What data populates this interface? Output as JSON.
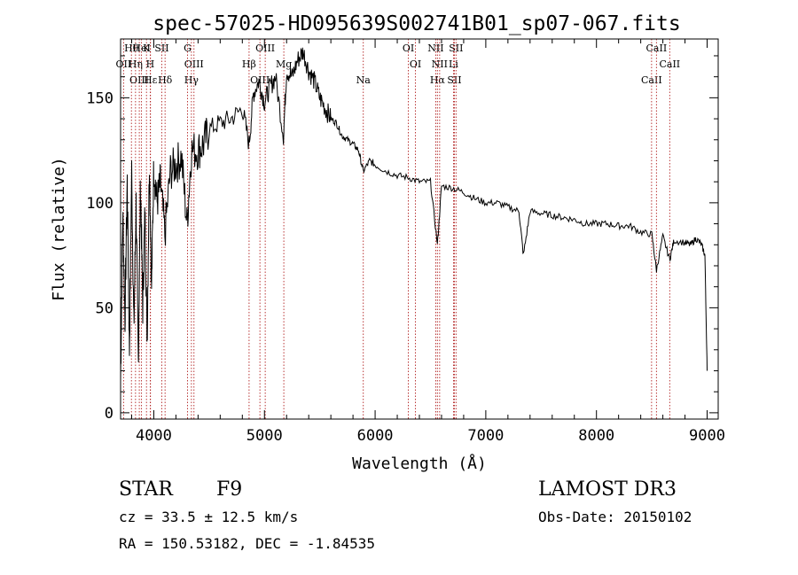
{
  "chart_data": {
    "type": "line",
    "title": "spec-57025-HD095639S002741B01_sp07-067.fits",
    "xlabel": "Wavelength (Å)",
    "ylabel": "Flux (relative)",
    "xlim": [
      3700,
      9100
    ],
    "ylim": [
      -3,
      178
    ],
    "xticks": [
      4000,
      5000,
      6000,
      7000,
      8000,
      9000
    ],
    "yticks": [
      0,
      50,
      100,
      150
    ],
    "series": [
      {
        "name": "flux",
        "x": [
          3700,
          3720,
          3740,
          3760,
          3780,
          3800,
          3820,
          3840,
          3860,
          3880,
          3900,
          3920,
          3940,
          3960,
          3980,
          4000,
          4030,
          4060,
          4100,
          4150,
          4200,
          4250,
          4300,
          4340,
          4400,
          4450,
          4500,
          4600,
          4700,
          4800,
          4861,
          4900,
          4950,
          5000,
          5050,
          5100,
          5172,
          5200,
          5250,
          5300,
          5350,
          5400,
          5450,
          5500,
          5550,
          5600,
          5650,
          5700,
          5750,
          5800,
          5850,
          5893,
          5950,
          6000,
          6100,
          6200,
          6300,
          6400,
          6500,
          6563,
          6600,
          6700,
          6800,
          6900,
          7000,
          7100,
          7200,
          7300,
          7340,
          7400,
          7500,
          7600,
          7700,
          7800,
          7900,
          8000,
          8100,
          8200,
          8300,
          8400,
          8500,
          8542,
          8600,
          8662,
          8700,
          8800,
          8850,
          8900,
          8950,
          8980,
          9000
        ],
        "y": [
          15,
          95,
          45,
          110,
          30,
          115,
          40,
          100,
          25,
          110,
          50,
          95,
          35,
          120,
          60,
          118,
          100,
          110,
          85,
          115,
          118,
          122,
          90,
          125,
          125,
          128,
          135,
          138,
          140,
          145,
          128,
          152,
          158,
          148,
          155,
          160,
          132,
          163,
          160,
          168,
          172,
          163,
          158,
          150,
          145,
          140,
          138,
          132,
          130,
          128,
          125,
          115,
          120,
          118,
          115,
          113,
          112,
          110,
          110,
          80,
          108,
          107,
          105,
          102,
          100,
          100,
          98,
          96,
          75,
          96,
          95,
          94,
          93,
          92,
          90,
          90,
          90,
          89,
          89,
          86,
          85,
          68,
          84,
          73,
          82,
          81,
          80,
          83,
          80,
          75,
          20
        ]
      }
    ],
    "lines": [
      {
        "name": "Hθ",
        "wavelength": 3798
      },
      {
        "name": "OII",
        "wavelength": 3727
      },
      {
        "name": "OIII",
        "wavelength": 3869
      },
      {
        "name": "K",
        "wavelength": 3934
      },
      {
        "name": "H",
        "wavelength": 3968
      },
      {
        "name": "Hε",
        "wavelength": 3970
      },
      {
        "name": "HeI",
        "wavelength": 3889
      },
      {
        "name": "Hη",
        "wavelength": 3835
      },
      {
        "name": "Hδ",
        "wavelength": 4102
      },
      {
        "name": "SII",
        "wavelength": 4072
      },
      {
        "name": "OIII",
        "wavelength": 4363
      },
      {
        "name": "Hγ",
        "wavelength": 4340
      },
      {
        "name": "G",
        "wavelength": 4305
      },
      {
        "name": "Hβ",
        "wavelength": 4861
      },
      {
        "name": "OIII",
        "wavelength": 4959
      },
      {
        "name": "OIII",
        "wavelength": 5007
      },
      {
        "name": "Mg",
        "wavelength": 5175
      },
      {
        "name": "Na",
        "wavelength": 5893
      },
      {
        "name": "OI",
        "wavelength": 6300
      },
      {
        "name": "OI",
        "wavelength": 6364
      },
      {
        "name": "Hα",
        "wavelength": 6563
      },
      {
        "name": "NII",
        "wavelength": 6548
      },
      {
        "name": "NII",
        "wavelength": 6583
      },
      {
        "name": "SII",
        "wavelength": 6716
      },
      {
        "name": "SII",
        "wavelength": 6731
      },
      {
        "name": "Li",
        "wavelength": 6708
      },
      {
        "name": "CaII",
        "wavelength": 8498
      },
      {
        "name": "CaII",
        "wavelength": 8542
      },
      {
        "name": "CaII",
        "wavelength": 8662
      }
    ],
    "colors": {
      "spectrum": "#000000",
      "line_markers": "#b22222"
    }
  },
  "info": {
    "object_class": "STAR",
    "subclass": "F9",
    "survey": "LAMOST DR3",
    "cz": "cz = 33.5 ± 12.5 km/s",
    "obs_date": "Obs-Date: 20150102",
    "coords": "RA = 150.53182, DEC =  -1.84535"
  }
}
